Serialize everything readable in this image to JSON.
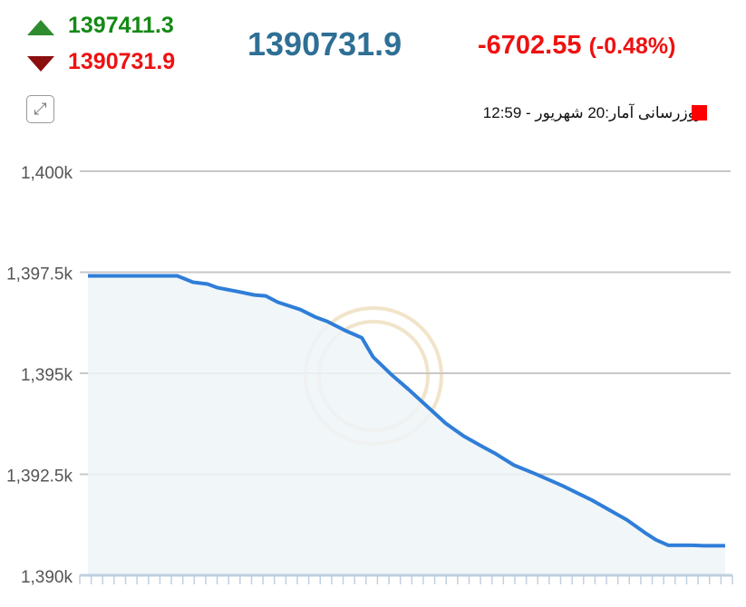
{
  "header": {
    "high": "1397411.3",
    "low": "1390731.9",
    "last": "1390731.9",
    "change": "-6702.55",
    "change_percent": "(-0.48%)",
    "icons": {
      "up": "triangle-up-icon",
      "down": "triangle-down-icon",
      "expand": "expand-icon"
    },
    "colors": {
      "high": "#138a13",
      "low": "#ee1111",
      "last": "#2e6f95",
      "change": "#ee1111"
    }
  },
  "legend": {
    "text": "بروزرسانی آمار:20 شهریور - 12:59",
    "color": "#ff0000"
  },
  "chart_data": {
    "type": "area",
    "ylim": [
      1390000,
      1400000
    ],
    "y_ticks": [
      "1,390k",
      "1,392.5k",
      "1,395k",
      "1,397.5k",
      "1,400k"
    ],
    "y_tick_values": [
      1390000,
      1392500,
      1395000,
      1397500,
      1400000
    ],
    "grid": true,
    "line_color": "#2f7ed8",
    "x_ticks_count": 58,
    "x": [
      0,
      8,
      9.4,
      10.7,
      11.6,
      13.3,
      14.9,
      15.9,
      17,
      19,
      20.3,
      21.4,
      23,
      24.5,
      25.5,
      27.1,
      28.7,
      30.3,
      32,
      33.6,
      35.2,
      36.4,
      38.1,
      40.1,
      42.5,
      45,
      46.6,
      48.2,
      49.8,
      50.8,
      51.9,
      54.1,
      55.1,
      57
    ],
    "values": [
      1397411,
      1397411,
      1397253,
      1397208,
      1397117,
      1397027,
      1396937,
      1396915,
      1396757,
      1396577,
      1396397,
      1396284,
      1396059,
      1395879,
      1395406,
      1394978,
      1394595,
      1394190,
      1393762,
      1393447,
      1393199,
      1393019,
      1392727,
      1392501,
      1392209,
      1391871,
      1391622,
      1391374,
      1391059,
      1390879,
      1390744,
      1390744,
      1390732,
      1390732
    ]
  }
}
